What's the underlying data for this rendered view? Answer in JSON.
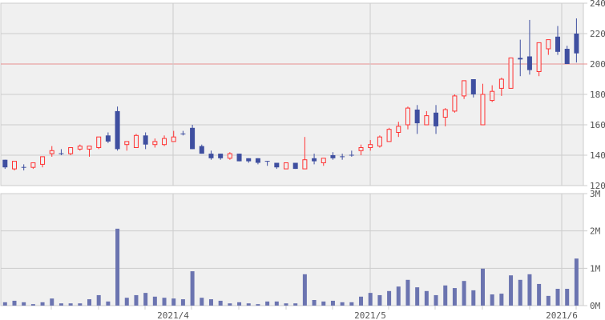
{
  "chart_data": [
    {
      "type": "candlestick",
      "ylim": [
        120,
        240
      ],
      "y_ticks": [
        "120",
        "140",
        "160",
        "180",
        "200",
        "220",
        "240"
      ],
      "reference_line": 200,
      "grid": true,
      "colors": {
        "up": "#ff3333",
        "down": "#3f4fa0",
        "reference": "#e89090",
        "grid": "#cccccc",
        "background": "#f0f0f0"
      },
      "x_labels": [
        "2021/4",
        "2021/5",
        "2021/6"
      ],
      "ohlc": [
        [
          137,
          137,
          131,
          132
        ],
        [
          131,
          136,
          130,
          136
        ],
        [
          132,
          134,
          130,
          132
        ],
        [
          132,
          135,
          131,
          135
        ],
        [
          134,
          139,
          132,
          139
        ],
        [
          141,
          146,
          139,
          143
        ],
        [
          141,
          144,
          140,
          141
        ],
        [
          141,
          145,
          140,
          145
        ],
        [
          144,
          147,
          143,
          146
        ],
        [
          144,
          146,
          139,
          146
        ],
        [
          145,
          152,
          144,
          152
        ],
        [
          153,
          155,
          148,
          149
        ],
        [
          169,
          172,
          143,
          144
        ],
        [
          147,
          149,
          143,
          149
        ],
        [
          145,
          154,
          145,
          153
        ],
        [
          153,
          155,
          144,
          147
        ],
        [
          147,
          151,
          145,
          149
        ],
        [
          147,
          153,
          146,
          151
        ],
        [
          149,
          156,
          149,
          152
        ],
        [
          154,
          156,
          153,
          154
        ],
        [
          158,
          160,
          144,
          144
        ],
        [
          146,
          147,
          141,
          141
        ],
        [
          141,
          143,
          137,
          138
        ],
        [
          141,
          141,
          137,
          138
        ],
        [
          138,
          142,
          137,
          141
        ],
        [
          141,
          141,
          136,
          136
        ],
        [
          138,
          138,
          135,
          136
        ],
        [
          138,
          138,
          134,
          135
        ],
        [
          136,
          136,
          133,
          136
        ],
        [
          135,
          135,
          131,
          132
        ],
        [
          131,
          135,
          131,
          135
        ],
        [
          135,
          135,
          131,
          131
        ],
        [
          131,
          152,
          131,
          137
        ],
        [
          138,
          141,
          134,
          136
        ],
        [
          135,
          138,
          133,
          138
        ],
        [
          140,
          142,
          137,
          138
        ],
        [
          139,
          141,
          137,
          139
        ],
        [
          140,
          143,
          139,
          140
        ],
        [
          143,
          147,
          140,
          145
        ],
        [
          145,
          150,
          143,
          147
        ],
        [
          146,
          153,
          145,
          152
        ],
        [
          149,
          158,
          149,
          157
        ],
        [
          155,
          162,
          152,
          159
        ],
        [
          160,
          172,
          157,
          171
        ],
        [
          170,
          173,
          154,
          161
        ],
        [
          160,
          169,
          160,
          166
        ],
        [
          168,
          173,
          154,
          159
        ],
        [
          165,
          171,
          159,
          170
        ],
        [
          169,
          180,
          168,
          179
        ],
        [
          179,
          189,
          177,
          189
        ],
        [
          190,
          190,
          178,
          180
        ],
        [
          160,
          187,
          160,
          180
        ],
        [
          176,
          186,
          175,
          182
        ],
        [
          184,
          191,
          179,
          190
        ],
        [
          184,
          204,
          184,
          204
        ],
        [
          204,
          216,
          192,
          203
        ],
        [
          205,
          229,
          193,
          196
        ],
        [
          195,
          214,
          192,
          214
        ],
        [
          210,
          216,
          206,
          216
        ],
        [
          218,
          225,
          206,
          208
        ],
        [
          210,
          212,
          200,
          200
        ],
        [
          220,
          230,
          201,
          207
        ]
      ]
    },
    {
      "type": "bar",
      "ylim": [
        0,
        3
      ],
      "y_ticks": [
        "0M",
        "1M",
        "2M",
        "3M"
      ],
      "unit": "M",
      "color": "#6b74b0",
      "x_labels": [
        "2021/4",
        "2021/5",
        "2021/6"
      ],
      "values": [
        0.09,
        0.13,
        0.09,
        0.04,
        0.09,
        0.19,
        0.06,
        0.06,
        0.06,
        0.17,
        0.28,
        0.11,
        2.06,
        0.21,
        0.28,
        0.34,
        0.24,
        0.21,
        0.19,
        0.17,
        0.92,
        0.21,
        0.17,
        0.13,
        0.06,
        0.09,
        0.06,
        0.04,
        0.11,
        0.11,
        0.06,
        0.06,
        0.84,
        0.15,
        0.11,
        0.13,
        0.09,
        0.09,
        0.24,
        0.34,
        0.28,
        0.39,
        0.51,
        0.69,
        0.49,
        0.39,
        0.28,
        0.54,
        0.47,
        0.66,
        0.41,
        0.99,
        0.3,
        0.32,
        0.81,
        0.69,
        0.84,
        0.58,
        0.26,
        0.45,
        0.45,
        1.26
      ]
    }
  ]
}
